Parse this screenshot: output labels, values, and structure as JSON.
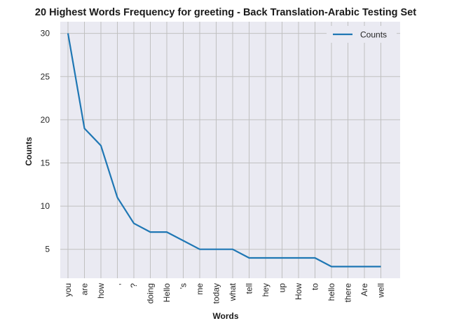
{
  "chart_data": {
    "type": "line",
    "title": "20 Highest Words Frequency for greeting - Back Translation-Arabic Testing Set",
    "xlabel": "Words",
    "ylabel": "Counts",
    "categories": [
      "you",
      "are",
      "how",
      ",",
      "?",
      "doing",
      "Hello",
      "'s",
      "me",
      "today",
      "what",
      "tell",
      "hey",
      "up",
      "How",
      "to",
      "hello",
      "there",
      "Are",
      "well"
    ],
    "series": [
      {
        "name": "Counts",
        "values": [
          30,
          19,
          17,
          11,
          8,
          7,
          7,
          6,
          5,
          5,
          5,
          4,
          4,
          4,
          4,
          4,
          3,
          3,
          3,
          3
        ]
      }
    ],
    "yticks": [
      5,
      10,
      15,
      20,
      25,
      30
    ],
    "ylim": [
      1.65,
      31.35
    ],
    "grid": true,
    "legend_position": "top-right",
    "colors": {
      "line": "#1f77b4",
      "plot_bg": "#eaeaf2",
      "grid": "#c0c0c0"
    }
  }
}
